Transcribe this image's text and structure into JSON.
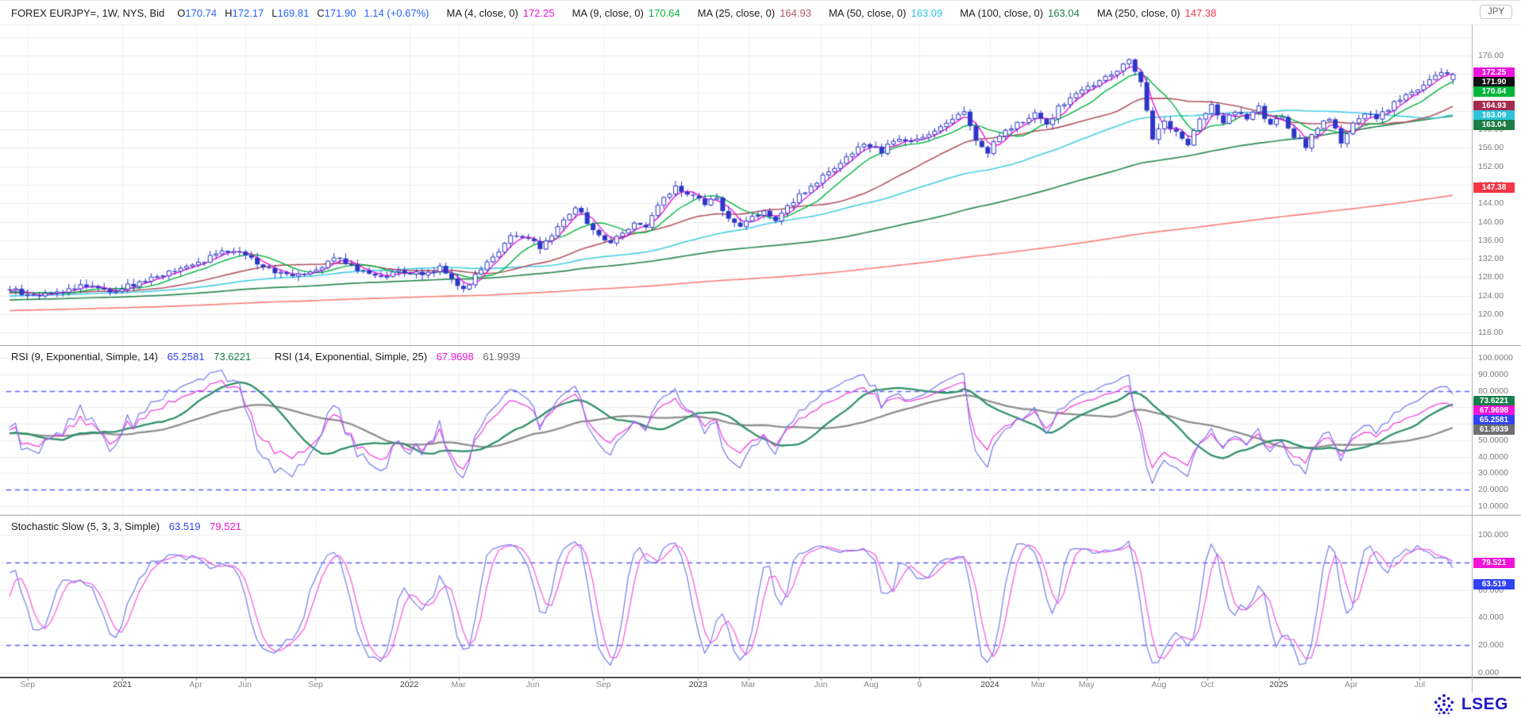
{
  "header": {
    "symbol_info": "FOREX EURJPY=, 1W, NYS, Bid",
    "ohlc": {
      "o_label": "O",
      "o_value": "170.74",
      "h_label": "H",
      "h_value": "172.17",
      "l_label": "L",
      "l_value": "169.81",
      "c_label": "C",
      "c_value": "171.90",
      "change": "1.14 (+0.67%)"
    },
    "ma_legend": [
      {
        "label": "MA (4, close, 0)",
        "value": "172.25",
        "color": "#ec13dc"
      },
      {
        "label": "MA (9, close, 0)",
        "value": "170.64",
        "color": "#00b53c"
      },
      {
        "label": "MA (25, close, 0)",
        "value": "164.93",
        "color": "#b25763"
      },
      {
        "label": "MA (50, close, 0)",
        "value": "163.09",
        "color": "#2cc4d9"
      },
      {
        "label": "MA (100, close, 0)",
        "value": "163.04",
        "color": "#1e7d46"
      },
      {
        "label": "MA (250, close, 0)",
        "value": "147.38",
        "color": "#f23645"
      }
    ],
    "currency_chip": "JPY"
  },
  "chart_data": [
    {
      "id": "price",
      "type": "candlestick",
      "title": "FOREX EURJPY=, 1W, NYS, Bid",
      "interval": "1W",
      "x_range": [
        "Sep 2020",
        "Jul 2025"
      ],
      "last_bar": {
        "open": 170.74,
        "high": 172.17,
        "low": 169.81,
        "close": 171.9,
        "change": "1.14 (+0.67%)"
      },
      "candle_color": "#2d36c8",
      "weekly_close_anchors": [
        [
          0,
          125.5
        ],
        [
          3,
          123.9
        ],
        [
          6,
          124.4
        ],
        [
          9,
          125.0
        ],
        [
          12,
          126.2
        ],
        [
          15,
          126.0
        ],
        [
          17,
          124.8
        ],
        [
          20,
          126.0
        ],
        [
          23,
          127.3
        ],
        [
          26,
          128.7
        ],
        [
          30,
          130.0
        ],
        [
          34,
          132.3
        ],
        [
          37,
          133.6
        ],
        [
          39,
          133.9
        ],
        [
          41,
          132.0
        ],
        [
          44,
          129.6
        ],
        [
          48,
          128.7
        ],
        [
          52,
          129.8
        ],
        [
          55,
          132.2
        ],
        [
          57,
          131.3
        ],
        [
          60,
          129.0
        ],
        [
          63,
          128.4
        ],
        [
          66,
          129.0
        ],
        [
          70,
          128.6
        ],
        [
          73,
          130.3
        ],
        [
          75,
          127.8
        ],
        [
          77,
          125.2
        ],
        [
          79,
          128.6
        ],
        [
          81,
          131.2
        ],
        [
          83,
          133.9
        ],
        [
          85,
          137.0
        ],
        [
          88,
          136.0
        ],
        [
          90,
          134.6
        ],
        [
          92,
          136.9
        ],
        [
          94,
          140.6
        ],
        [
          96,
          143.5
        ],
        [
          98,
          139.6
        ],
        [
          100,
          137.0
        ],
        [
          102,
          135.5
        ],
        [
          104,
          137.8
        ],
        [
          106,
          139.9
        ],
        [
          108,
          138.6
        ],
        [
          110,
          143.4
        ],
        [
          113,
          147.6
        ],
        [
          116,
          145.4
        ],
        [
          118,
          143.9
        ],
        [
          120,
          145.1
        ],
        [
          122,
          140.4
        ],
        [
          124,
          138.9
        ],
        [
          126,
          141.2
        ],
        [
          128,
          142.6
        ],
        [
          130,
          139.7
        ],
        [
          132,
          143.1
        ],
        [
          134,
          145.9
        ],
        [
          136,
          147.6
        ],
        [
          138,
          149.6
        ],
        [
          140,
          151.2
        ],
        [
          142,
          153.6
        ],
        [
          144,
          155.9
        ],
        [
          146,
          156.6
        ],
        [
          148,
          155.1
        ],
        [
          150,
          157.9
        ],
        [
          152,
          157.1
        ],
        [
          154,
          157.8
        ],
        [
          156,
          159.0
        ],
        [
          158,
          160.6
        ],
        [
          160,
          162.6
        ],
        [
          162,
          163.8
        ],
        [
          164,
          157.6
        ],
        [
          166,
          155.2
        ],
        [
          168,
          158.6
        ],
        [
          170,
          160.3
        ],
        [
          172,
          161.9
        ],
        [
          174,
          163.3
        ],
        [
          176,
          161.0
        ],
        [
          178,
          164.6
        ],
        [
          180,
          166.9
        ],
        [
          182,
          168.6
        ],
        [
          184,
          169.6
        ],
        [
          186,
          171.1
        ],
        [
          188,
          173.1
        ],
        [
          190,
          174.8
        ],
        [
          192,
          170.2
        ],
        [
          194,
          158.2
        ],
        [
          196,
          161.6
        ],
        [
          198,
          159.6
        ],
        [
          200,
          156.8
        ],
        [
          202,
          162.6
        ],
        [
          204,
          164.9
        ],
        [
          206,
          161.6
        ],
        [
          208,
          163.6
        ],
        [
          210,
          162.1
        ],
        [
          212,
          164.6
        ],
        [
          214,
          160.6
        ],
        [
          216,
          162.9
        ],
        [
          218,
          158.6
        ],
        [
          220,
          156.4
        ],
        [
          222,
          160.6
        ],
        [
          224,
          162.6
        ],
        [
          226,
          157.0
        ],
        [
          228,
          161.6
        ],
        [
          230,
          163.6
        ],
        [
          232,
          162.1
        ],
        [
          234,
          164.6
        ],
        [
          236,
          166.6
        ],
        [
          238,
          168.1
        ],
        [
          240,
          170.1
        ],
        [
          242,
          171.3
        ],
        [
          244,
          172.4
        ],
        [
          245,
          171.9
        ]
      ],
      "prehistory": {
        "weeks": 250,
        "from": 117.0,
        "to": 124.5
      },
      "moving_averages": [
        {
          "period": 250,
          "source": "close",
          "offset": 0,
          "current": "147.38",
          "color": "#f97d76",
          "width": 1.6
        },
        {
          "period": 100,
          "source": "close",
          "offset": 0,
          "current": "163.04",
          "color": "#2e8b57",
          "width": 1.7
        },
        {
          "period": 50,
          "source": "close",
          "offset": 0,
          "current": "163.09",
          "color": "#45cde5",
          "width": 1.6
        },
        {
          "period": 25,
          "source": "close",
          "offset": 0,
          "current": "164.93",
          "color": "#b25763",
          "width": 1.6
        },
        {
          "period": 9,
          "source": "close",
          "offset": 0,
          "current": "170.64",
          "color": "#00b53c",
          "width": 1.4
        },
        {
          "period": 4,
          "source": "close",
          "offset": 0,
          "current": "172.25",
          "color": "#ec13dc",
          "width": 1.4
        }
      ],
      "y_axis": {
        "unit": "JPY",
        "ticks": [
          {
            "t": "176.00",
            "v": 176
          },
          {
            "t": "172.00",
            "v": 172
          },
          {
            "t": "168.00",
            "v": 168
          },
          {
            "t": "164.00",
            "v": 164
          },
          {
            "t": "160.00",
            "v": 160
          },
          {
            "t": "156.00",
            "v": 156
          },
          {
            "t": "152.00",
            "v": 152
          },
          {
            "t": "148.00",
            "v": 148
          },
          {
            "t": "144.00",
            "v": 144
          },
          {
            "t": "140.00",
            "v": 140
          },
          {
            "t": "136.00",
            "v": 136
          },
          {
            "t": "132.00",
            "v": 132
          },
          {
            "t": "128.00",
            "v": 128
          },
          {
            "t": "124.00",
            "v": 124
          },
          {
            "t": "120.00",
            "v": 120
          },
          {
            "t": "116.00",
            "v": 116
          }
        ]
      },
      "badges": [
        {
          "text": "172.25",
          "color": "#ec13dc"
        },
        {
          "text": "171.90",
          "color": "#111111"
        },
        {
          "text": "170.64",
          "color": "#00b53c"
        },
        {
          "text": "164.93",
          "color": "#a62c4e"
        },
        {
          "text": "163.09",
          "color": "#2cc4d9"
        },
        {
          "text": "163.04",
          "color": "#1e7d46"
        },
        {
          "text": "147.38",
          "color": "#f23645"
        }
      ],
      "x_labels": [
        {
          "text": "Sep",
          "f": 0.0145
        },
        {
          "text": "2021",
          "f": 0.0792,
          "year": true
        },
        {
          "text": "Apr",
          "f": 0.1293
        },
        {
          "text": "Jun",
          "f": 0.1629
        },
        {
          "text": "Sep",
          "f": 0.2111
        },
        {
          "text": "2022",
          "f": 0.2751,
          "year": true
        },
        {
          "text": "Mar",
          "f": 0.3087
        },
        {
          "text": "Jun",
          "f": 0.3595
        },
        {
          "text": "Sep",
          "f": 0.4077
        },
        {
          "text": "2023",
          "f": 0.4723,
          "year": true
        },
        {
          "text": "Mar",
          "f": 0.5066
        },
        {
          "text": "Jun",
          "f": 0.5561
        },
        {
          "text": "Aug",
          "f": 0.5904
        },
        {
          "text": "9",
          "f": 0.6234
        },
        {
          "text": "2024",
          "f": 0.6715,
          "year": true
        },
        {
          "text": "Mar",
          "f": 0.7045
        },
        {
          "text": "May",
          "f": 0.7375
        },
        {
          "text": "Aug",
          "f": 0.7869
        },
        {
          "text": "Oct",
          "f": 0.8199
        },
        {
          "text": "2025",
          "f": 0.8687,
          "year": true
        },
        {
          "text": "Apr",
          "f": 0.9182
        },
        {
          "text": "Jul",
          "f": 0.965
        }
      ]
    },
    {
      "id": "rsi",
      "type": "line",
      "series": [
        {
          "name": "RSI (9, Exponential, Simple, 14)",
          "period": 9,
          "signal_period": 14,
          "value": "65.2581",
          "color": "#7577ee",
          "signal_value": "73.6221",
          "signal_color": "#2f9168"
        },
        {
          "name": "RSI (14, Exponential, Simple, 25)",
          "period": 14,
          "signal_period": 25,
          "value": "67.9698",
          "color": "#f336dd",
          "signal_value": "61.9939",
          "signal_color": "#8e8e8e"
        }
      ],
      "thresholds": [
        80,
        20
      ],
      "ticks": [
        {
          "t": "100.0000",
          "v": 100
        },
        {
          "t": "90.0000",
          "v": 90
        },
        {
          "t": "80.0000",
          "v": 80
        },
        {
          "t": "70.0000",
          "v": 70
        },
        {
          "t": "60.0000",
          "v": 60
        },
        {
          "t": "50.0000",
          "v": 50
        },
        {
          "t": "40.0000",
          "v": 40
        },
        {
          "t": "30.0000",
          "v": 30
        },
        {
          "t": "20.0000",
          "v": 20
        },
        {
          "t": "10.0000",
          "v": 10
        }
      ],
      "badges": [
        {
          "text": "73.6221",
          "color": "#187e4b"
        },
        {
          "text": "67.9698",
          "color": "#f013d8"
        },
        {
          "text": "65.2581",
          "color": "#2f43f5"
        },
        {
          "text": "61.9939",
          "color": "#6f6f6f"
        }
      ]
    },
    {
      "id": "stochastic",
      "type": "line",
      "label": "Stochastic Slow (5, 3, 3, Simple)",
      "params": [
        5,
        3,
        3
      ],
      "series": [
        {
          "name": "%K",
          "value": "63.519",
          "color": "#7a85ef"
        },
        {
          "name": "%D",
          "value": "79.521",
          "color": "#f75fe2"
        }
      ],
      "thresholds": [
        80,
        20
      ],
      "ticks": [
        {
          "t": "100.000",
          "v": 100
        },
        {
          "t": "80.000",
          "v": 80
        },
        {
          "t": "60.000",
          "v": 60
        },
        {
          "t": "40.000",
          "v": 40
        },
        {
          "t": "20.000",
          "v": 20
        },
        {
          "t": "0.000",
          "v": 0
        }
      ],
      "badges": [
        {
          "text": "79.521",
          "color": "#f013d8"
        },
        {
          "text": "63.519",
          "color": "#2f43f5"
        }
      ]
    }
  ],
  "footer": {
    "brand": "LSEG"
  }
}
